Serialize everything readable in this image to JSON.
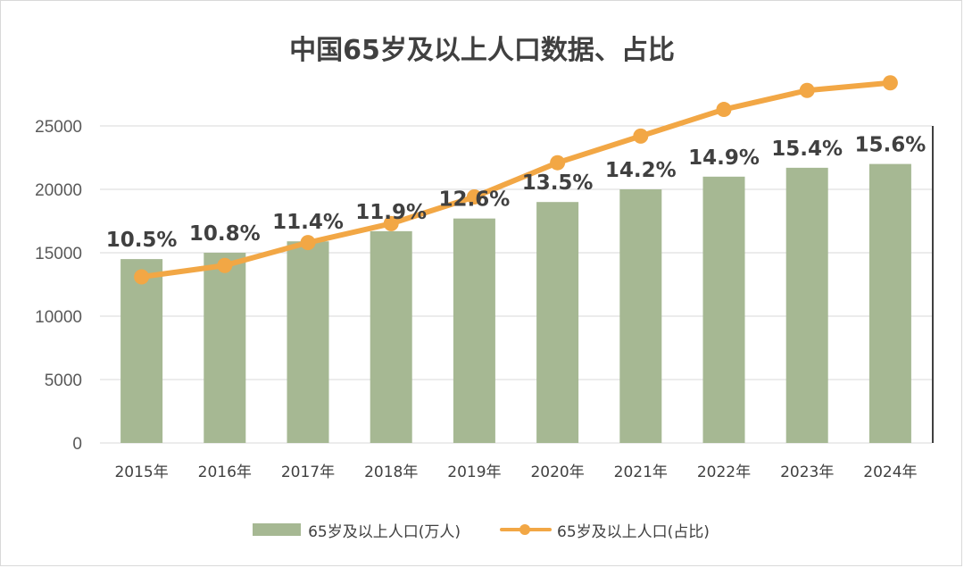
{
  "colors": {
    "bar": "#a6b893",
    "line": "#f2a745",
    "grid": "#d9d9d9",
    "text": "#404040"
  },
  "chart_data": {
    "type": "bar+line",
    "title": "中国65岁及以上人口数据、占比",
    "categories": [
      "2015年",
      "2016年",
      "2017年",
      "2018年",
      "2019年",
      "2020年",
      "2021年",
      "2022年",
      "2023年",
      "2024年"
    ],
    "ylim": [
      0,
      25000
    ],
    "y_ticks": [
      0,
      5000,
      10000,
      15000,
      20000,
      25000
    ],
    "series": [
      {
        "name": "65岁及以上人口(万人)",
        "type": "bar",
        "values": [
          14500,
          15000,
          15900,
          16700,
          17700,
          19000,
          20000,
          21000,
          21700,
          22000
        ]
      },
      {
        "name": "65岁及以上人口(占比)",
        "type": "line",
        "unit": "%",
        "values": [
          10.5,
          10.8,
          11.4,
          11.9,
          12.6,
          13.5,
          14.2,
          14.9,
          15.4,
          15.6
        ],
        "labels": [
          "10.5%",
          "10.8%",
          "11.4%",
          "11.9%",
          "12.6%",
          "13.5%",
          "14.2%",
          "14.9%",
          "15.4%",
          "15.6%"
        ]
      }
    ],
    "legend": {
      "position": "bottom"
    },
    "grid": true
  }
}
